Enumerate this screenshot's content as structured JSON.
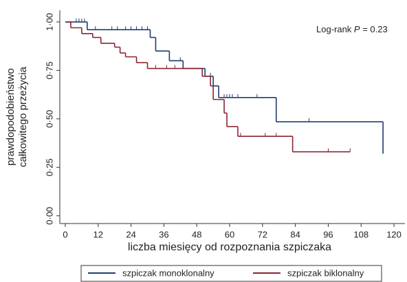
{
  "chart_data": {
    "type": "step",
    "ylabel": [
      "prawdopodobieństwo",
      "całkowitego przeżycia"
    ],
    "xlabel": "liczba miesięcy od rozpoznania szpiczaka",
    "annotation": [
      "Log-rank ",
      "P",
      " = 0.23"
    ],
    "xlim": [
      -2,
      124
    ],
    "xticks": [
      0,
      12,
      24,
      36,
      48,
      60,
      72,
      84,
      96,
      108,
      120
    ],
    "ylim": [
      -0.04,
      1.06
    ],
    "yticks": [
      {
        "value": 0,
        "label": "0·00"
      },
      {
        "value": 0.25,
        "label": "0·25"
      },
      {
        "value": 0.5,
        "label": "0·50"
      },
      {
        "value": 0.75,
        "label": "0·75"
      },
      {
        "value": 1,
        "label": "1·00"
      }
    ],
    "series": [
      {
        "name": "szpiczak monoklonalny",
        "color": "#1f3d6e",
        "x": [
          0,
          8,
          31,
          33,
          38,
          43,
          51,
          54,
          56,
          77,
          116
        ],
        "values": [
          1,
          0.96,
          0.92,
          0.85,
          0.8,
          0.76,
          0.72,
          0.67,
          0.61,
          0.485,
          0.32
        ],
        "censored_x": [
          4,
          5,
          6,
          7,
          11,
          17,
          19,
          22,
          24,
          26,
          28,
          30,
          42,
          53,
          58,
          59,
          60,
          61,
          63,
          70,
          89
        ],
        "censored_values": [
          1,
          1,
          1,
          1,
          0.96,
          0.96,
          0.96,
          0.96,
          0.96,
          0.96,
          0.96,
          0.96,
          0.8,
          0.72,
          0.61,
          0.61,
          0.61,
          0.61,
          0.61,
          0.61,
          0.485
        ]
      },
      {
        "name": "szpiczak biklonalny",
        "color": "#8b2332",
        "x": [
          0,
          2,
          6,
          10,
          13,
          18,
          20,
          22,
          26,
          30,
          50,
          53,
          54,
          58,
          59,
          63,
          83,
          104
        ],
        "values": [
          1,
          0.97,
          0.94,
          0.92,
          0.89,
          0.87,
          0.84,
          0.82,
          0.79,
          0.76,
          0.72,
          0.67,
          0.6,
          0.53,
          0.46,
          0.41,
          0.33,
          0.33
        ],
        "censored_x": [
          33,
          37,
          40,
          64,
          73,
          77,
          96,
          104
        ],
        "censored_values": [
          0.76,
          0.76,
          0.76,
          0.41,
          0.41,
          0.41,
          0.33,
          0.33
        ]
      }
    ]
  }
}
